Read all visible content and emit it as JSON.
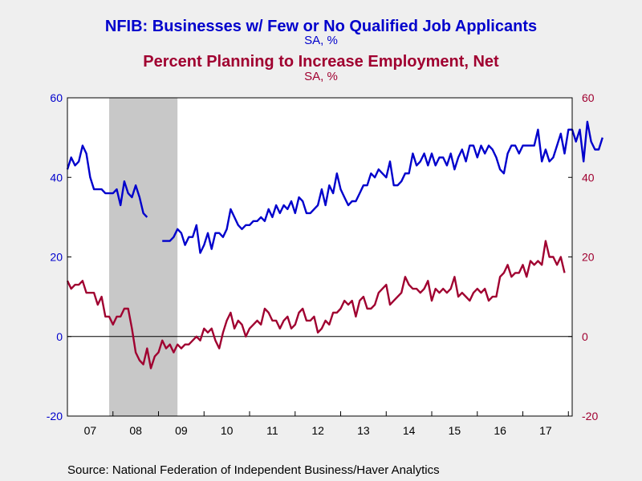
{
  "titles": {
    "title1": "NFIB: Businesses w/ Few or No Qualified Job Applicants",
    "sub1": "SA, %",
    "title2": "Percent Planning to Increase Employment, Net",
    "sub2": "SA, %"
  },
  "colors": {
    "series1": "#0000CC",
    "series2": "#A00030",
    "background": "#EFEFEF",
    "plot_bg": "#FFFFFF",
    "recession": "#C8C8C8"
  },
  "source": "Source:  National Federation of Independent Business/Haver Analytics",
  "chart_data": {
    "type": "line",
    "x_tick_labels": [
      "07",
      "08",
      "09",
      "10",
      "11",
      "12",
      "13",
      "14",
      "15",
      "16",
      "17"
    ],
    "xlim": [
      "2007-01",
      "2018-02"
    ],
    "recession_shading": [
      [
        "2007-12",
        "2009-06"
      ]
    ],
    "left_axis": {
      "ticks": [
        "60",
        "40",
        "20",
        "0",
        "-20"
      ],
      "ylim": [
        -20,
        60
      ]
    },
    "right_axis": {
      "ticks": [
        "60",
        "40",
        "20",
        "0",
        "-20"
      ],
      "ylim": [
        -20,
        60
      ]
    },
    "zero_line": true,
    "grid": false,
    "series": [
      {
        "name": "NFIB: Businesses w/ Few or No Qualified Job Applicants",
        "axis": "left",
        "start": "2007-01",
        "values": [
          42,
          45,
          43,
          44,
          48,
          46,
          40,
          37,
          37,
          37,
          36,
          36,
          36,
          37,
          33,
          39,
          36,
          35,
          38,
          35,
          31,
          30,
          null,
          null,
          null,
          24,
          24,
          24,
          25,
          27,
          26,
          23,
          25,
          25,
          28,
          21,
          23,
          26,
          22,
          26,
          26,
          25,
          27,
          32,
          30,
          28,
          27,
          28,
          28,
          29,
          29,
          30,
          29,
          32,
          30,
          33,
          31,
          33,
          32,
          34,
          31,
          35,
          34,
          31,
          31,
          32,
          33,
          37,
          33,
          38,
          36,
          41,
          37,
          35,
          33,
          34,
          34,
          36,
          38,
          38,
          41,
          40,
          42,
          41,
          40,
          44,
          38,
          38,
          39,
          41,
          41,
          46,
          43,
          44,
          46,
          43,
          46,
          43,
          45,
          45,
          43,
          46,
          42,
          45,
          47,
          44,
          48,
          48,
          45,
          48,
          46,
          48,
          47,
          45,
          42,
          41,
          46,
          48,
          48,
          46,
          48,
          48,
          48,
          48,
          52,
          44,
          47,
          44,
          45,
          48,
          51,
          46,
          52,
          52,
          49,
          52,
          44,
          54,
          49,
          47,
          47,
          50
        ]
      },
      {
        "name": "Percent Planning to Increase Employment, Net",
        "axis": "right",
        "start": "2007-01",
        "values": [
          14,
          12,
          13,
          13,
          14,
          11,
          11,
          11,
          8,
          10,
          5,
          5,
          3,
          5,
          5,
          7,
          7,
          2,
          -4,
          -6,
          -7,
          -3,
          -8,
          -5,
          -4,
          -1,
          -3,
          -2,
          -4,
          -2,
          -3,
          -2,
          -2,
          -1,
          0,
          -1,
          2,
          1,
          2,
          -1,
          -3,
          1,
          4,
          6,
          2,
          4,
          3,
          0,
          2,
          3,
          4,
          3,
          7,
          6,
          4,
          4,
          2,
          4,
          5,
          2,
          3,
          6,
          7,
          4,
          4,
          5,
          1,
          2,
          4,
          3,
          6,
          6,
          7,
          9,
          8,
          9,
          5,
          9,
          10,
          7,
          7,
          8,
          11,
          12,
          13,
          8,
          9,
          10,
          11,
          15,
          13,
          12,
          12,
          11,
          12,
          14,
          9,
          12,
          11,
          12,
          11,
          12,
          15,
          10,
          11,
          10,
          9,
          11,
          12,
          11,
          12,
          9,
          10,
          10,
          15,
          16,
          18,
          15,
          16,
          16,
          18,
          15,
          19,
          18,
          19,
          18,
          24,
          20,
          20,
          18,
          20,
          16
        ]
      }
    ]
  }
}
